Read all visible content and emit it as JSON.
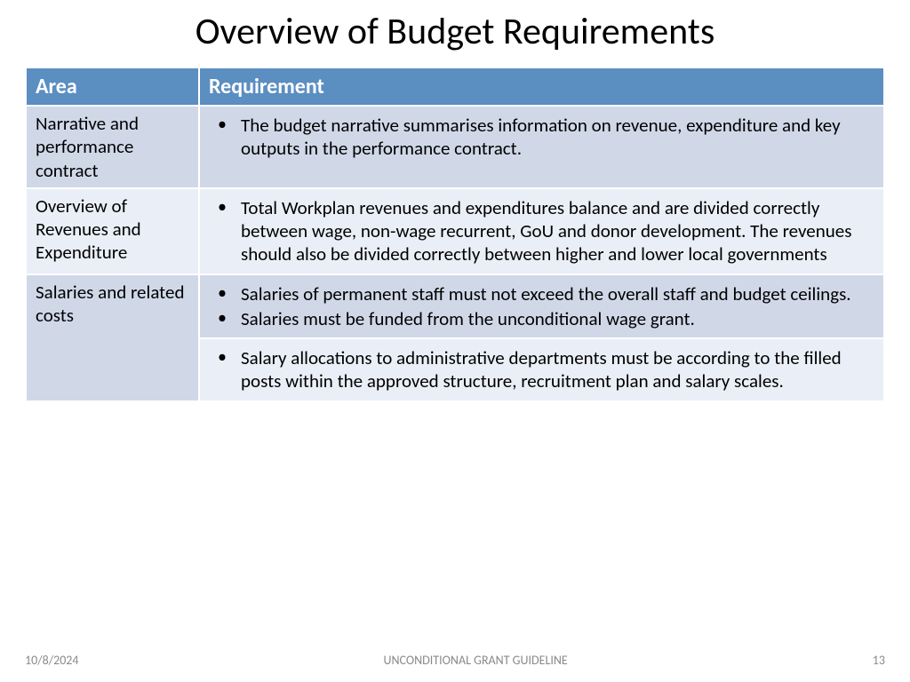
{
  "title": "Overview of Budget Requirements",
  "table": {
    "col_widths": [
      "195px",
      "auto"
    ],
    "header_bg": "#5b8ec1",
    "header_fg": "#ffffff",
    "band_odd_left": "#d0d8e8",
    "band_odd_right": "#d0d8e8",
    "band_even_left": "#eaeef7",
    "band_even_right": "#eaeef7",
    "columns": [
      "Area",
      "Requirement"
    ],
    "rows": [
      {
        "area": "Narrative and performance contract",
        "req1": "The budget narrative summarises information on revenue, expenditure and key outputs in the performance contract.",
        "row_bg_left": "#d0d8e8",
        "row_bg_right": "#d0d8e8"
      },
      {
        "area": "Overview of Revenues and Expenditure",
        "req1": "Total Workplan revenues and expenditures balance and are divided correctly between wage, non-wage recurrent, GoU and donor development. The revenues should also be divided correctly between higher and lower local governments",
        "row_bg_left": "#eaeef7",
        "row_bg_right": "#eaeef7"
      },
      {
        "area": "Salaries and related costs",
        "req1": "Salaries of permanent staff must not exceed the overall staff and budget ceilings.",
        "req2": "Salaries must be funded from the unconditional wage grant.",
        "req3": "Salary allocations to administrative departments must be according to the filled posts within the approved structure, recruitment plan and salary scales.",
        "row_bg_left": "#d0d8e8",
        "row_bg_right_a": "#d0d8e8",
        "row_bg_right_b": "#eaeef7"
      }
    ]
  },
  "footer": {
    "date": "10/8/2024",
    "center": "UNCONDITIONAL GRANT GUIDELINE",
    "page": "13",
    "color": "#8a8a8a"
  }
}
